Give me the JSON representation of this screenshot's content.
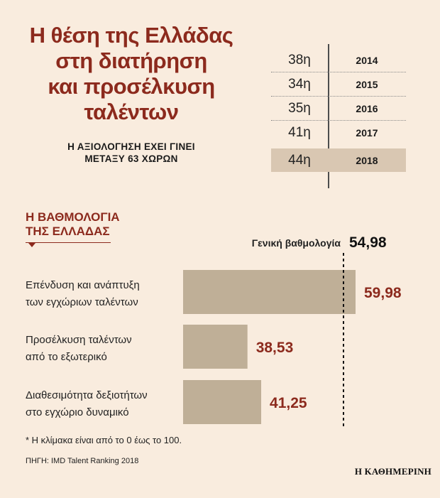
{
  "title_lines": [
    "Η θέση της Ελλάδας",
    "στη διατήρηση",
    "και προσέλκυση",
    "ταλέντων"
  ],
  "subtitle_lines": [
    "Η ΑΞΙΟΛΟΓΗΣΗ ΕΧΕΙ ΓΙΝΕΙ",
    "ΜΕΤΑΞΥ 63 ΧΩΡΩΝ"
  ],
  "rankings": [
    {
      "position": "38η",
      "year": "2014",
      "highlight": false
    },
    {
      "position": "34η",
      "year": "2015",
      "highlight": false
    },
    {
      "position": "35η",
      "year": "2016",
      "highlight": false
    },
    {
      "position": "41η",
      "year": "2017",
      "highlight": false
    },
    {
      "position": "44η",
      "year": "2018",
      "highlight": true
    }
  ],
  "section_title_lines": [
    "Η ΒΑΘΜΟΛΟΓΙΑ",
    "ΤΗΣ ΕΛΛΑΔΑΣ"
  ],
  "footnote": "* Η κλίμακα είναι από το 0 έως το 100.",
  "source": "ΠΗΓΗ: IMD Talent Ranking 2018",
  "logo_text": "Η ΚΑΘΗΜΕΡΙΝΗ",
  "colors": {
    "background": "#f9ecde",
    "bar": "#bfaf97",
    "value": "#8c2a1d",
    "highlight_row": "#d9c7b2"
  },
  "chart_data": {
    "type": "bar",
    "orientation": "horizontal",
    "categories": [
      [
        "Επένδυση και ανάπτυξη",
        "των εγχώριων ταλέντων"
      ],
      [
        "Προσέλκυση ταλέντων",
        "από το εξωτερικό"
      ],
      [
        "Διαθεσιμότητα δεξιοτήτων",
        "στο εγχώριο δυναμικό"
      ]
    ],
    "values": [
      59.98,
      38.53,
      41.25
    ],
    "value_labels": [
      "59,98",
      "38,53",
      "41,25"
    ],
    "reference": {
      "label": "Γενική βαθμολογία",
      "value": 54.98,
      "value_label": "54,98"
    },
    "xlim": [
      0,
      100
    ]
  }
}
